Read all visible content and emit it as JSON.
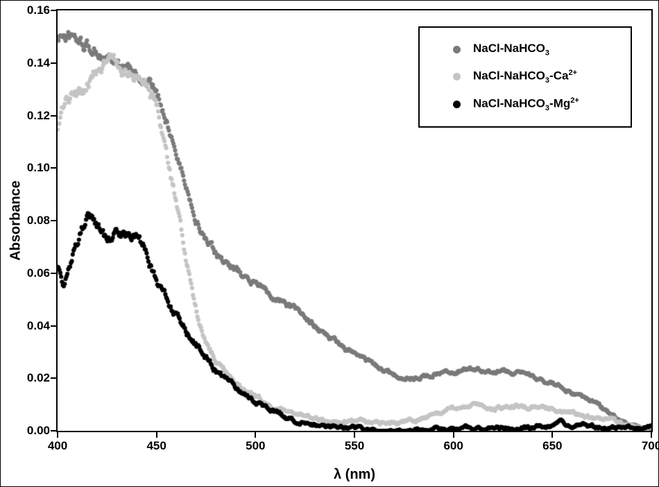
{
  "chart_data": {
    "type": "scatter",
    "title": "",
    "xlabel": "λ (nm)",
    "ylabel": "Absorbance",
    "xlim": [
      400,
      700
    ],
    "ylim": [
      0,
      0.16
    ],
    "xticks": [
      "400",
      "450",
      "500",
      "550",
      "600",
      "650",
      "700"
    ],
    "yticks": [
      "0.16",
      "0.14",
      "0.12",
      "0.10",
      "0.08",
      "0.06",
      "0.04",
      "0.02",
      "0.00"
    ],
    "grid": false,
    "legend_position": "top-right",
    "series": [
      {
        "name": "NaCl-NaHCO3",
        "label_parts": [
          {
            "t": "NaCl-NaHCO"
          },
          {
            "t": "3",
            "style": "sub"
          }
        ],
        "color": "#7a7a7a",
        "noise": 0.003,
        "points": [
          [
            400,
            0.149
          ],
          [
            403,
            0.151
          ],
          [
            406,
            0.15
          ],
          [
            410,
            0.148
          ],
          [
            415,
            0.146
          ],
          [
            420,
            0.144
          ],
          [
            425,
            0.141
          ],
          [
            430,
            0.139
          ],
          [
            435,
            0.137
          ],
          [
            440,
            0.136
          ],
          [
            445,
            0.133
          ],
          [
            450,
            0.128
          ],
          [
            455,
            0.119
          ],
          [
            460,
            0.106
          ],
          [
            465,
            0.093
          ],
          [
            470,
            0.081
          ],
          [
            475,
            0.072
          ],
          [
            480,
            0.067
          ],
          [
            485,
            0.063
          ],
          [
            490,
            0.061
          ],
          [
            495,
            0.058
          ],
          [
            500,
            0.056
          ],
          [
            510,
            0.051
          ],
          [
            520,
            0.046
          ],
          [
            530,
            0.04
          ],
          [
            540,
            0.034
          ],
          [
            550,
            0.029
          ],
          [
            560,
            0.025
          ],
          [
            570,
            0.021
          ],
          [
            580,
            0.02
          ],
          [
            590,
            0.022
          ],
          [
            600,
            0.023
          ],
          [
            610,
            0.024
          ],
          [
            620,
            0.023
          ],
          [
            630,
            0.022
          ],
          [
            640,
            0.021
          ],
          [
            650,
            0.018
          ],
          [
            660,
            0.015
          ],
          [
            670,
            0.011
          ],
          [
            680,
            0.006
          ],
          [
            690,
            0.002
          ],
          [
            700,
            0.0
          ]
        ]
      },
      {
        "name": "NaCl-NaHCO3-Ca2+",
        "label_parts": [
          {
            "t": "NaCl-NaHCO"
          },
          {
            "t": "3",
            "style": "sub"
          },
          {
            "t": "-Ca"
          },
          {
            "t": "2+",
            "style": "sup"
          }
        ],
        "color": "#c4c4c4",
        "noise": 0.0035,
        "points": [
          [
            400,
            0.113
          ],
          [
            403,
            0.121
          ],
          [
            406,
            0.126
          ],
          [
            410,
            0.128
          ],
          [
            414,
            0.131
          ],
          [
            418,
            0.134
          ],
          [
            422,
            0.137
          ],
          [
            426,
            0.14
          ],
          [
            429,
            0.141
          ],
          [
            433,
            0.138
          ],
          [
            437,
            0.135
          ],
          [
            441,
            0.134
          ],
          [
            445,
            0.131
          ],
          [
            450,
            0.122
          ],
          [
            455,
            0.106
          ],
          [
            460,
            0.086
          ],
          [
            465,
            0.063
          ],
          [
            470,
            0.046
          ],
          [
            475,
            0.034
          ],
          [
            480,
            0.027
          ],
          [
            485,
            0.022
          ],
          [
            490,
            0.018
          ],
          [
            495,
            0.015
          ],
          [
            500,
            0.013
          ],
          [
            505,
            0.011
          ],
          [
            510,
            0.009
          ],
          [
            515,
            0.008
          ],
          [
            520,
            0.007
          ],
          [
            525,
            0.006
          ],
          [
            530,
            0.005
          ],
          [
            540,
            0.004
          ],
          [
            550,
            0.004
          ],
          [
            560,
            0.003
          ],
          [
            570,
            0.003
          ],
          [
            580,
            0.004
          ],
          [
            590,
            0.006
          ],
          [
            600,
            0.008
          ],
          [
            610,
            0.01
          ],
          [
            620,
            0.009
          ],
          [
            630,
            0.009
          ],
          [
            640,
            0.009
          ],
          [
            650,
            0.008
          ],
          [
            660,
            0.007
          ],
          [
            670,
            0.005
          ],
          [
            680,
            0.004
          ],
          [
            690,
            0.002
          ],
          [
            700,
            0.001
          ]
        ]
      },
      {
        "name": "NaCl-NaHCO3-Mg2+",
        "label_parts": [
          {
            "t": "NaCl-NaHCO"
          },
          {
            "t": "3",
            "style": "sub"
          },
          {
            "t": "-Mg"
          },
          {
            "t": "2+",
            "style": "sup"
          }
        ],
        "color": "#000000",
        "noise": 0.004,
        "points": [
          [
            400,
            0.063
          ],
          [
            403,
            0.056
          ],
          [
            406,
            0.061
          ],
          [
            409,
            0.07
          ],
          [
            412,
            0.076
          ],
          [
            415,
            0.08
          ],
          [
            418,
            0.079
          ],
          [
            421,
            0.077
          ],
          [
            424,
            0.073
          ],
          [
            427,
            0.075
          ],
          [
            430,
            0.077
          ],
          [
            433,
            0.074
          ],
          [
            436,
            0.074
          ],
          [
            439,
            0.076
          ],
          [
            442,
            0.072
          ],
          [
            445,
            0.067
          ],
          [
            448,
            0.061
          ],
          [
            451,
            0.056
          ],
          [
            455,
            0.05
          ],
          [
            460,
            0.044
          ],
          [
            465,
            0.038
          ],
          [
            470,
            0.033
          ],
          [
            475,
            0.028
          ],
          [
            480,
            0.023
          ],
          [
            485,
            0.019
          ],
          [
            490,
            0.016
          ],
          [
            495,
            0.013
          ],
          [
            500,
            0.011
          ],
          [
            505,
            0.009
          ],
          [
            510,
            0.007
          ],
          [
            515,
            0.005
          ],
          [
            520,
            0.004
          ],
          [
            525,
            0.003
          ],
          [
            530,
            0.002
          ],
          [
            540,
            0.001
          ],
          [
            550,
            0.001
          ],
          [
            560,
            0.0
          ],
          [
            580,
            0.0
          ],
          [
            600,
            0.001
          ],
          [
            620,
            0.001
          ],
          [
            640,
            0.001
          ],
          [
            655,
            0.003
          ],
          [
            665,
            0.002
          ],
          [
            680,
            0.001
          ],
          [
            700,
            0.001
          ]
        ]
      }
    ]
  }
}
